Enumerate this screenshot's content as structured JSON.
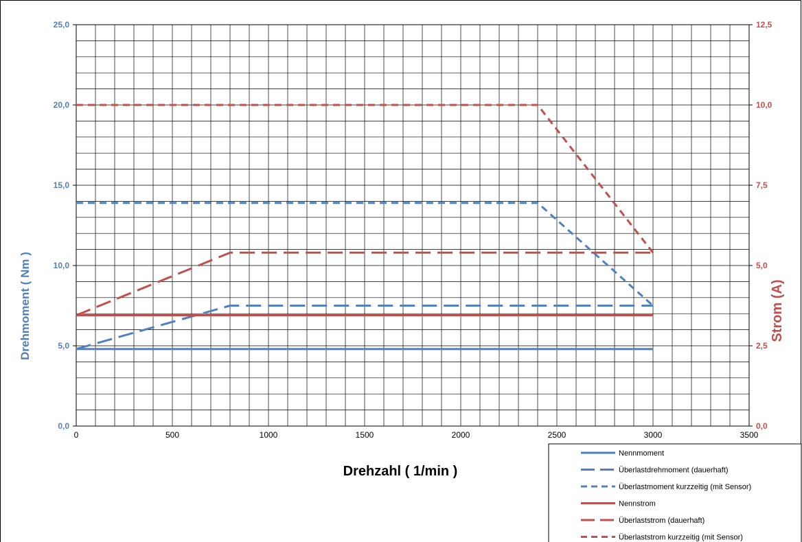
{
  "chart_data": {
    "type": "line",
    "xlabel": "Drehzahl ( 1/min )",
    "ylabel_left": "Drehmoment ( Nm )",
    "ylabel_right": "Strom (A)",
    "xlim": [
      0,
      3500
    ],
    "ylim_left": [
      0,
      25
    ],
    "ylim_right": [
      0,
      12.5
    ],
    "x_ticks": [
      "0",
      "500",
      "1000",
      "1500",
      "2000",
      "2500",
      "3000",
      "3500"
    ],
    "y_left_ticks": [
      "0,0",
      "5,0",
      "10,0",
      "15,0",
      "20,0",
      "25,0"
    ],
    "y_right_ticks": [
      "0,0",
      "2,5",
      "5,0",
      "7,5",
      "10,0",
      "12,5"
    ],
    "grid": true,
    "legend_position": "bottom-right",
    "colors": {
      "blue": "#4f81bd",
      "red": "#c0504d",
      "grid": "#000000"
    },
    "series": [
      {
        "name": "Nennmoment",
        "axis": "left",
        "color": "#4f81bd",
        "dash": "solid",
        "x": [
          0,
          3000
        ],
        "y": [
          4.8,
          4.8
        ]
      },
      {
        "name": "Überlastdrehmoment (dauerhaft)",
        "axis": "left",
        "color": "#4f81bd",
        "dash": "long",
        "x": [
          0,
          800,
          3000
        ],
        "y": [
          4.8,
          7.5,
          7.5
        ]
      },
      {
        "name": "Überlastmoment kurzzeitig (mit Sensor)",
        "axis": "left",
        "color": "#4f81bd",
        "dash": "short",
        "x": [
          0,
          2400,
          3000
        ],
        "y": [
          13.9,
          13.9,
          7.5
        ]
      },
      {
        "name": "Nennstrom",
        "axis": "right",
        "color": "#c0504d",
        "dash": "solid",
        "x": [
          0,
          3000
        ],
        "y": [
          3.45,
          3.45
        ]
      },
      {
        "name": "Überlaststrom (dauerhaft)",
        "axis": "right",
        "color": "#c0504d",
        "dash": "long",
        "x": [
          0,
          800,
          3000
        ],
        "y": [
          3.45,
          5.4,
          5.4
        ]
      },
      {
        "name": "Überlaststrom kurzzeitig (mit Sensor)",
        "axis": "right",
        "color": "#c0504d",
        "dash": "short",
        "x": [
          0,
          2400,
          3000
        ],
        "y": [
          10.0,
          10.0,
          5.4
        ]
      }
    ]
  }
}
